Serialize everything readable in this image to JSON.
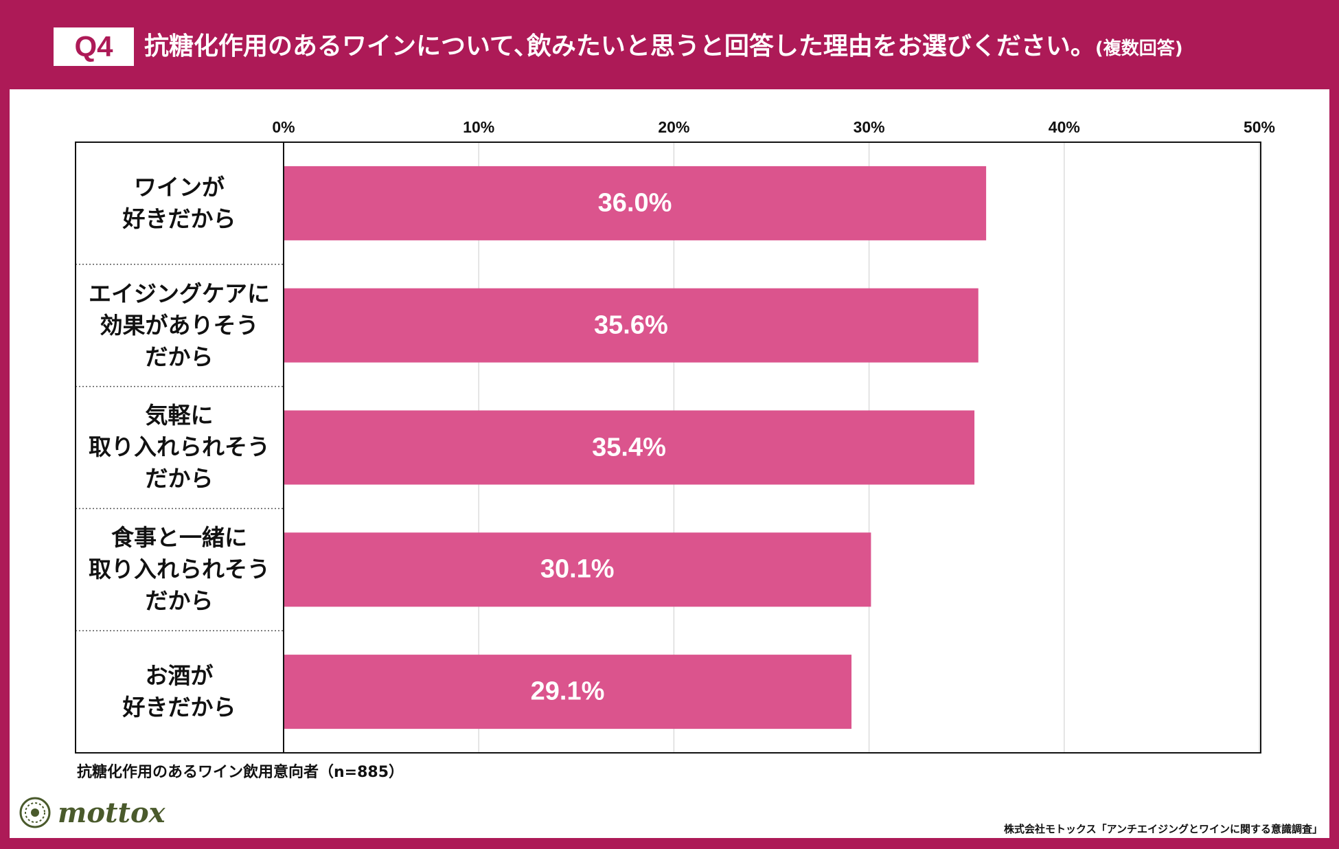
{
  "header": {
    "badge": "Q4",
    "title": "抗糖化作用のあるワインについて､飲みたいと思うと回答した理由をお選びください。",
    "title_suffix": "(複数回答)"
  },
  "colors": {
    "brand": "#ad1a57",
    "bar": "#db548d",
    "grid": "#dcdcdc",
    "logo": "#4a5a2c"
  },
  "chart_data": {
    "type": "bar",
    "orientation": "horizontal",
    "categories": [
      "ワインが\n好きだから",
      "エイジングケアに\n効果がありそう\nだから",
      "気軽に\n取り入れられそう\nだから",
      "食事と一緒に\n取り入れられそう\nだから",
      "お酒が\n好きだから"
    ],
    "values": [
      36.0,
      35.6,
      35.4,
      30.1,
      29.1
    ],
    "value_labels": [
      "36.0%",
      "35.6%",
      "35.4%",
      "30.1%",
      "29.1%"
    ],
    "xlim": [
      0,
      50
    ],
    "ticks": [
      0,
      10,
      20,
      30,
      40,
      50
    ],
    "tick_labels": [
      "0%",
      "10%",
      "20%",
      "30%",
      "40%",
      "50%"
    ],
    "grid": true,
    "unit": "%"
  },
  "footnote": "抗糖化作用のあるワイン飲用意向者（n=885）",
  "logo": {
    "text": "mottox",
    "icon": "wreath-logo-icon"
  },
  "source": "株式会社モトックス「アンチエイジングとワインに関する意識調査」"
}
